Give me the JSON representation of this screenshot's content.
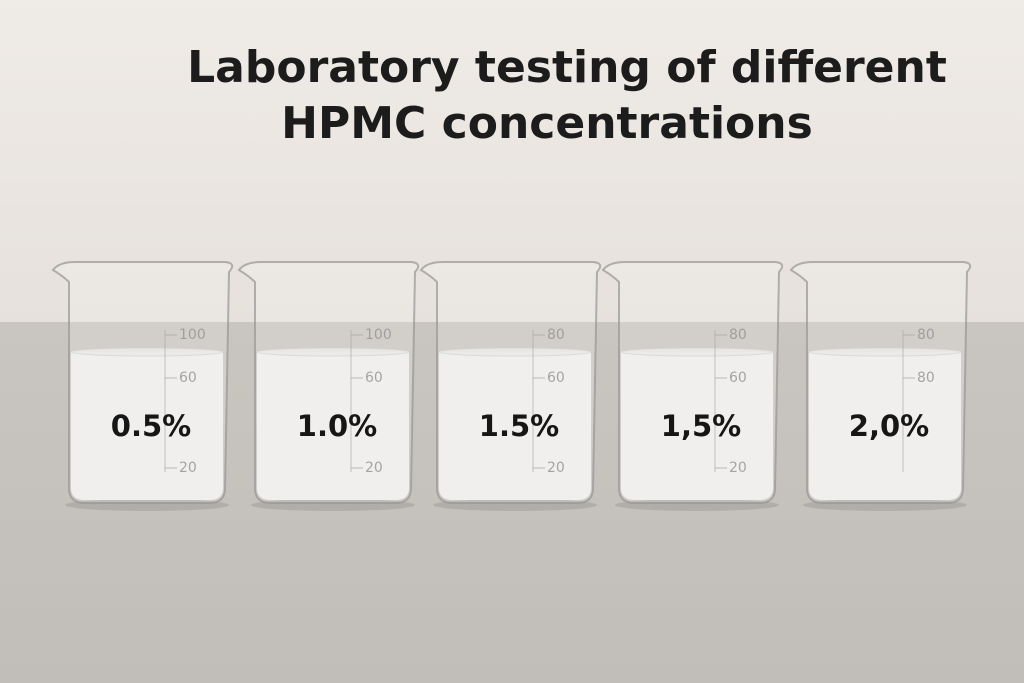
{
  "title": {
    "line1": "Laboratory testing of different",
    "line2": "HPMC concentrations"
  },
  "beakers": [
    {
      "label": "0.5%",
      "scale": [
        "100",
        "60",
        "20"
      ]
    },
    {
      "label": "1.0%",
      "scale": [
        "100",
        "60",
        "20"
      ]
    },
    {
      "label": "1.5%",
      "scale": [
        "80",
        "60",
        "20"
      ]
    },
    {
      "label": "1,5%",
      "scale": [
        "80",
        "60",
        "20"
      ]
    },
    {
      "label": "2,0%",
      "scale": [
        "80",
        "80"
      ]
    }
  ]
}
